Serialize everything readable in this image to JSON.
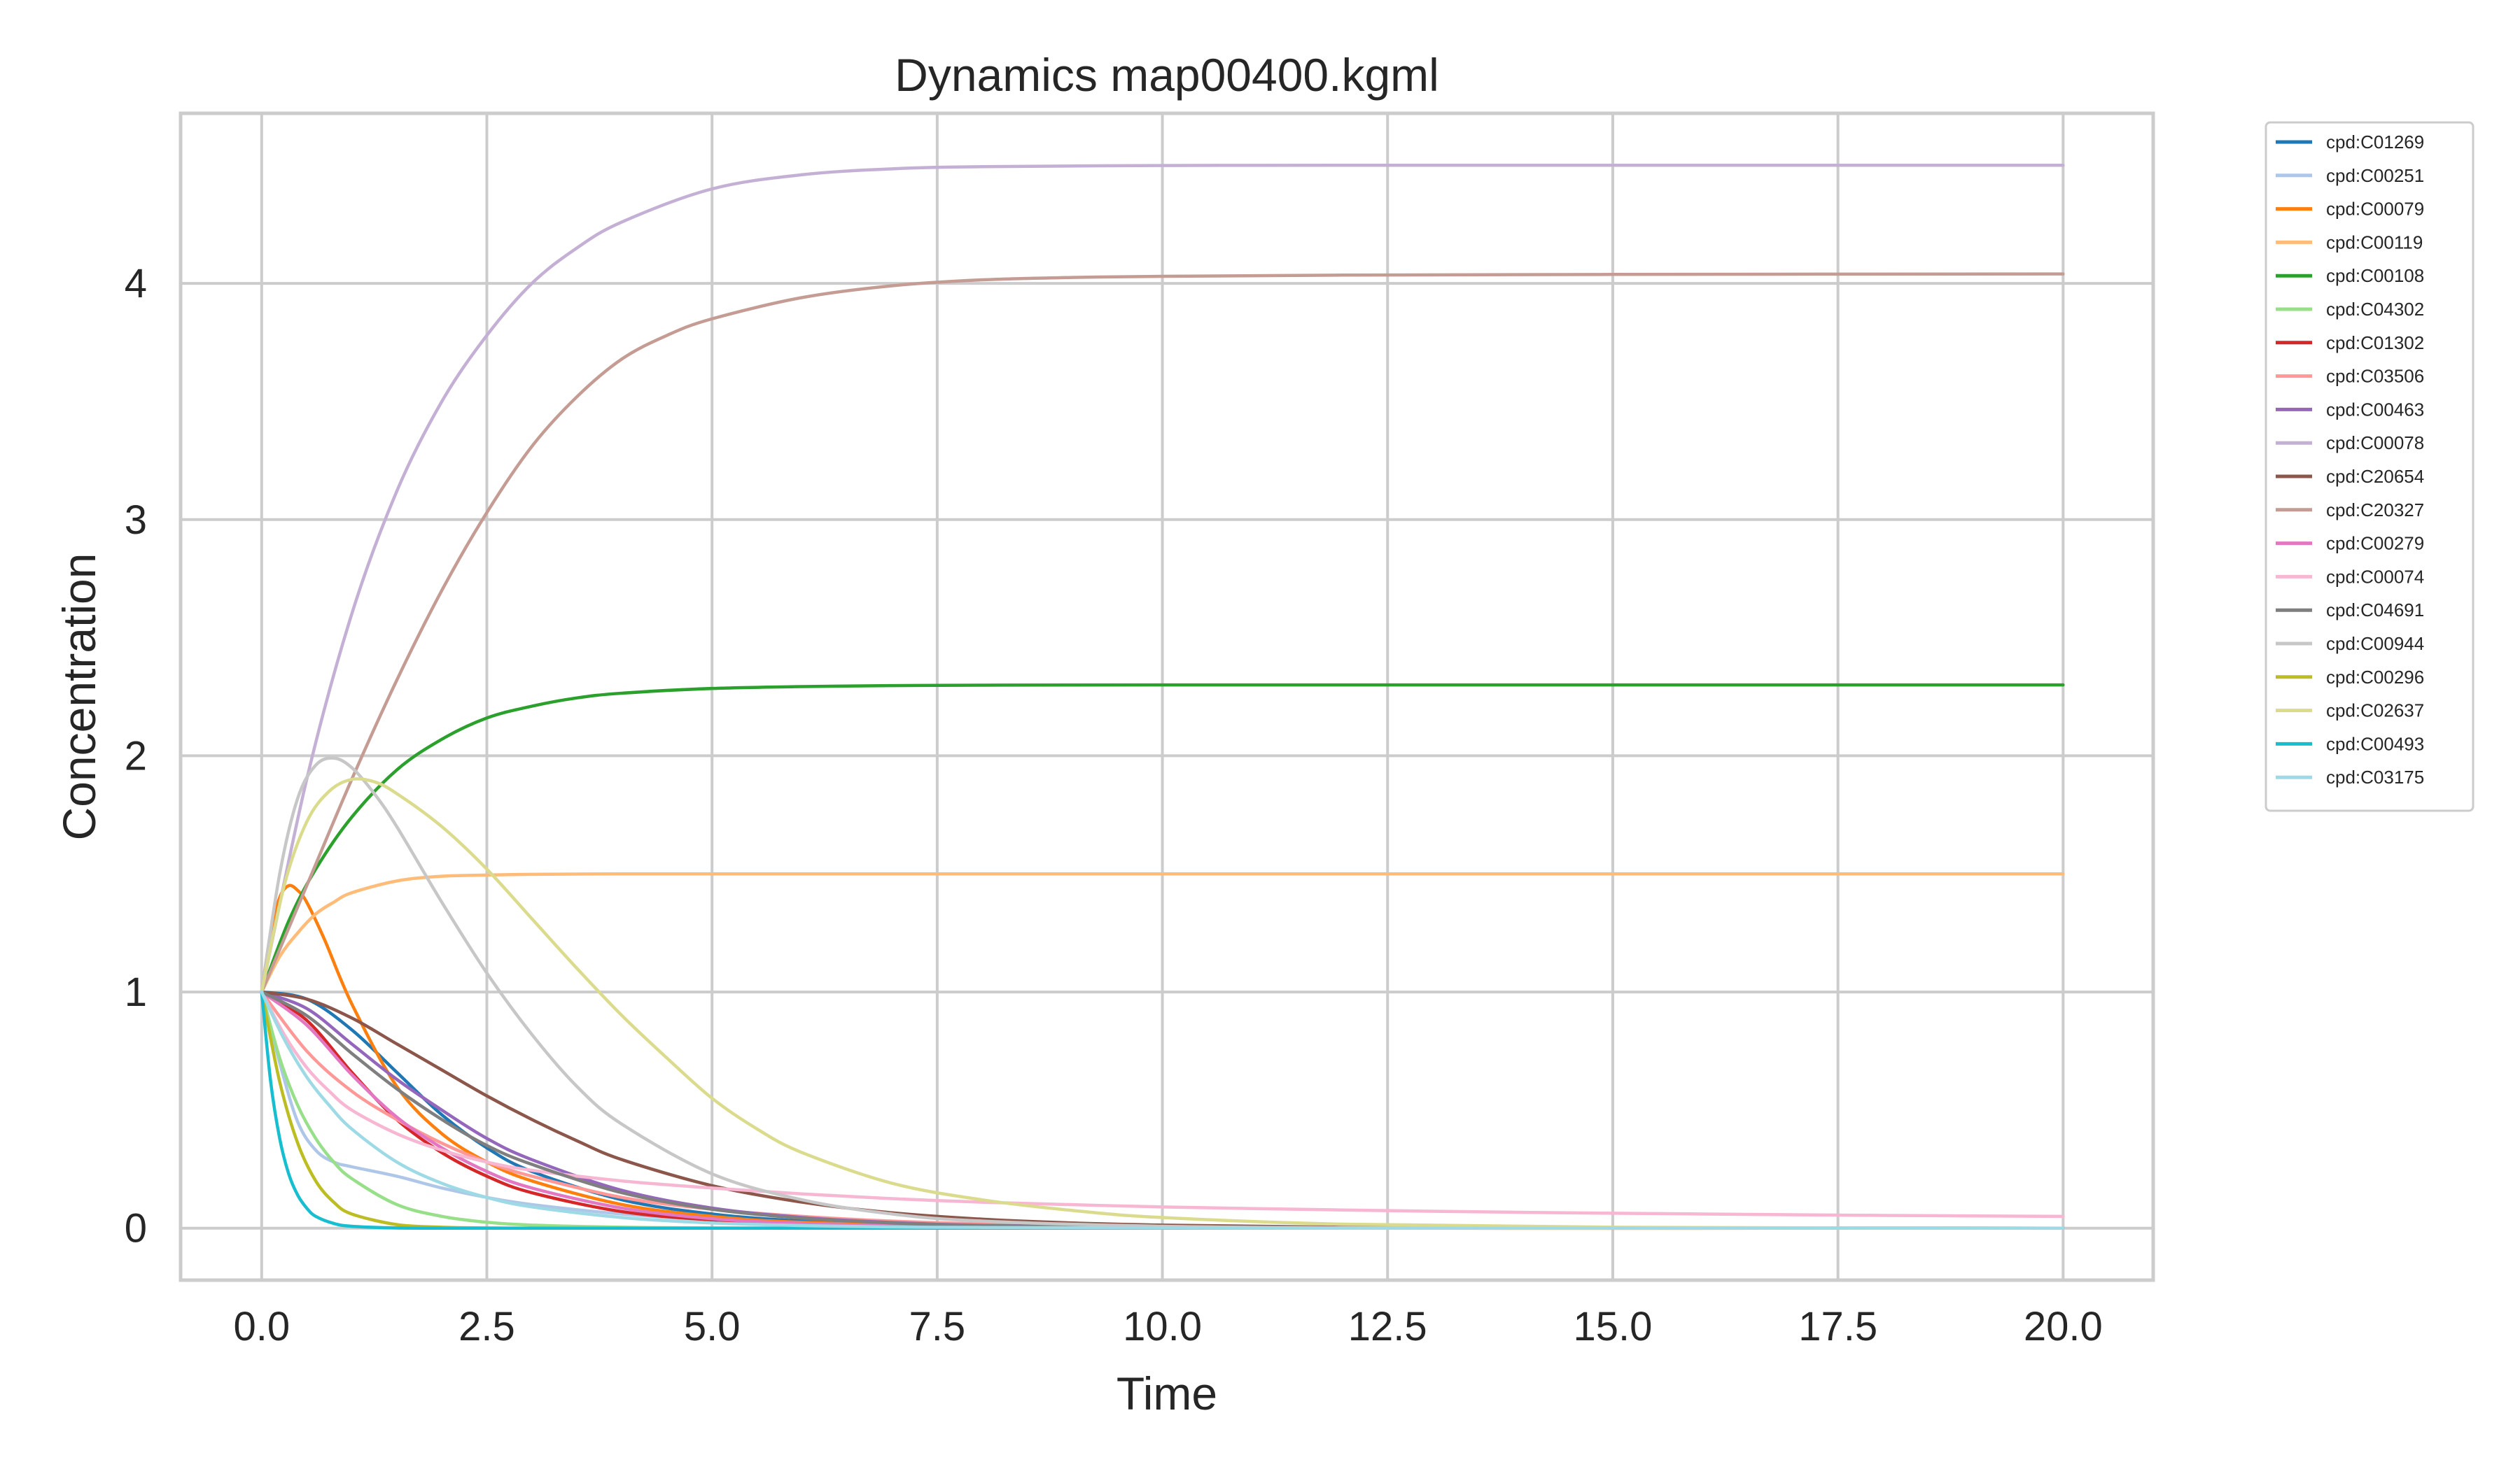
{
  "chart_data": {
    "type": "line",
    "title": "Dynamics map00400.kgml",
    "xlabel": "Time",
    "ylabel": "Concentration",
    "xlim": [
      -0.9,
      21.0
    ],
    "ylim": [
      -0.22,
      4.72
    ],
    "xticks": [
      0,
      2.5,
      5,
      7.5,
      10,
      12.5,
      15,
      17.5,
      20
    ],
    "xtick_labels": [
      "0.0",
      "2.5",
      "5.0",
      "7.5",
      "10.0",
      "12.5",
      "15.0",
      "17.5",
      "20.0"
    ],
    "yticks": [
      0,
      1,
      2,
      3,
      4
    ],
    "ytick_labels": [
      "0",
      "1",
      "2",
      "3",
      "4"
    ],
    "grid": true,
    "legend_position": "outside-right",
    "series": [
      {
        "name": "cpd:C01269",
        "color": "#1f77b4",
        "x": [
          0,
          0.5,
          1,
          1.5,
          2,
          2.5,
          3,
          4,
          5,
          6,
          7,
          8,
          10,
          12,
          15,
          20
        ],
        "y": [
          1.0,
          0.97,
          0.84,
          0.66,
          0.48,
          0.34,
          0.24,
          0.12,
          0.06,
          0.03,
          0.015,
          0.008,
          0.002,
          0.001,
          0.0,
          0.0
        ]
      },
      {
        "name": "cpd:C00251",
        "color": "#aec7e8",
        "x": [
          0,
          0.2,
          0.4,
          0.6,
          0.8,
          1,
          1.5,
          2,
          2.5,
          3,
          4,
          5,
          6,
          8,
          10,
          15,
          20
        ],
        "y": [
          1.0,
          0.7,
          0.45,
          0.33,
          0.28,
          0.26,
          0.22,
          0.17,
          0.13,
          0.1,
          0.06,
          0.035,
          0.02,
          0.007,
          0.002,
          0.0,
          0.0
        ]
      },
      {
        "name": "cpd:C00079",
        "color": "#ff7f0e",
        "x": [
          0,
          0.1,
          0.2,
          0.3,
          0.4,
          0.5,
          0.7,
          1,
          1.5,
          2,
          2.5,
          3,
          4,
          5,
          6,
          8,
          10,
          20
        ],
        "y": [
          1.0,
          1.25,
          1.4,
          1.45,
          1.43,
          1.38,
          1.22,
          0.95,
          0.6,
          0.4,
          0.28,
          0.2,
          0.1,
          0.05,
          0.025,
          0.006,
          0.0,
          0.0
        ]
      },
      {
        "name": "cpd:C00119",
        "color": "#ffbb78",
        "x": [
          0,
          0.2,
          0.4,
          0.6,
          0.8,
          1,
          1.5,
          2,
          2.5,
          3,
          4,
          5,
          7,
          10,
          15,
          20
        ],
        "y": [
          1.0,
          1.15,
          1.25,
          1.33,
          1.38,
          1.42,
          1.47,
          1.49,
          1.495,
          1.498,
          1.5,
          1.5,
          1.5,
          1.5,
          1.5,
          1.5
        ]
      },
      {
        "name": "cpd:C00108",
        "color": "#2ca02c",
        "x": [
          0,
          0.3,
          0.6,
          1,
          1.5,
          2,
          2.5,
          3,
          3.5,
          4,
          5,
          6,
          7,
          8,
          10,
          15,
          20
        ],
        "y": [
          1.0,
          1.3,
          1.52,
          1.74,
          1.94,
          2.07,
          2.16,
          2.21,
          2.245,
          2.265,
          2.285,
          2.293,
          2.297,
          2.299,
          2.3,
          2.3,
          2.3
        ]
      },
      {
        "name": "cpd:C04302",
        "color": "#98df8a",
        "x": [
          0,
          0.2,
          0.4,
          0.6,
          0.8,
          1,
          1.5,
          2,
          2.5,
          3,
          4,
          5,
          7,
          10,
          20
        ],
        "y": [
          1.0,
          0.72,
          0.52,
          0.38,
          0.28,
          0.21,
          0.1,
          0.05,
          0.025,
          0.013,
          0.004,
          0.001,
          0.0,
          0.0,
          0.0
        ]
      },
      {
        "name": "cpd:C01302",
        "color": "#d62728",
        "x": [
          0,
          0.5,
          1,
          1.5,
          2,
          2.5,
          3,
          4,
          5,
          6,
          7,
          8,
          10,
          12,
          20
        ],
        "y": [
          1.0,
          0.88,
          0.66,
          0.46,
          0.32,
          0.22,
          0.15,
          0.07,
          0.035,
          0.017,
          0.008,
          0.004,
          0.001,
          0.0,
          0.0
        ]
      },
      {
        "name": "cpd:C03506",
        "color": "#ff9896",
        "x": [
          0,
          0.5,
          1,
          1.5,
          2,
          2.5,
          3,
          4,
          5,
          6,
          7,
          8,
          10,
          12,
          20
        ],
        "y": [
          1.0,
          0.75,
          0.58,
          0.46,
          0.36,
          0.28,
          0.22,
          0.13,
          0.08,
          0.05,
          0.03,
          0.018,
          0.006,
          0.002,
          0.0
        ]
      },
      {
        "name": "cpd:C00463",
        "color": "#9467bd",
        "x": [
          0,
          0.5,
          1,
          1.5,
          2,
          2.5,
          3,
          4,
          5,
          6,
          7,
          8,
          10,
          12,
          15,
          20
        ],
        "y": [
          1.0,
          0.93,
          0.78,
          0.63,
          0.5,
          0.38,
          0.29,
          0.16,
          0.085,
          0.045,
          0.024,
          0.012,
          0.003,
          0.001,
          0.0,
          0.0
        ]
      },
      {
        "name": "cpd:C00078",
        "color": "#c5b0d5",
        "x": [
          0,
          0.5,
          1,
          1.5,
          2,
          2.5,
          3,
          3.5,
          4,
          5,
          6,
          7,
          8,
          10,
          12,
          15,
          20
        ],
        "y": [
          1.0,
          1.9,
          2.6,
          3.12,
          3.5,
          3.78,
          4.0,
          4.15,
          4.26,
          4.4,
          4.46,
          4.485,
          4.494,
          4.499,
          4.5,
          4.5,
          4.5
        ]
      },
      {
        "name": "cpd:C20654",
        "color": "#8c564b",
        "x": [
          0,
          0.5,
          1,
          1.5,
          2,
          2.5,
          3,
          3.5,
          4,
          5,
          6,
          7,
          8,
          9,
          10,
          12,
          15,
          20
        ],
        "y": [
          1.0,
          0.97,
          0.89,
          0.78,
          0.67,
          0.56,
          0.46,
          0.37,
          0.29,
          0.18,
          0.11,
          0.065,
          0.038,
          0.022,
          0.013,
          0.004,
          0.001,
          0.0
        ]
      },
      {
        "name": "cpd:C20327",
        "color": "#c49c94",
        "x": [
          0,
          0.5,
          1,
          1.5,
          2,
          2.5,
          3,
          3.5,
          4,
          4.5,
          5,
          6,
          7,
          8,
          9,
          10,
          12,
          15,
          20
        ],
        "y": [
          1.0,
          1.45,
          1.9,
          2.32,
          2.7,
          3.03,
          3.31,
          3.52,
          3.68,
          3.78,
          3.85,
          3.94,
          3.99,
          4.015,
          4.025,
          4.03,
          4.035,
          4.038,
          4.04
        ]
      },
      {
        "name": "cpd:C00279",
        "color": "#e377c2",
        "x": [
          0,
          0.5,
          1,
          1.5,
          2,
          2.5,
          3,
          4,
          5,
          6,
          7,
          8,
          10,
          12,
          20
        ],
        "y": [
          1.0,
          0.86,
          0.65,
          0.47,
          0.34,
          0.24,
          0.17,
          0.085,
          0.04,
          0.02,
          0.01,
          0.005,
          0.001,
          0.0,
          0.0
        ]
      },
      {
        "name": "cpd:C00074",
        "color": "#f7b6d2",
        "x": [
          0,
          0.25,
          0.5,
          0.75,
          1,
          1.5,
          2,
          2.5,
          3,
          4,
          5,
          6,
          7,
          8,
          10,
          12,
          14,
          16,
          18,
          20
        ],
        "y": [
          1.0,
          0.82,
          0.68,
          0.58,
          0.5,
          0.4,
          0.33,
          0.28,
          0.245,
          0.2,
          0.17,
          0.145,
          0.125,
          0.11,
          0.09,
          0.077,
          0.067,
          0.06,
          0.054,
          0.05
        ]
      },
      {
        "name": "cpd:C04691",
        "color": "#7f7f7f",
        "x": [
          0,
          0.5,
          1,
          1.5,
          2,
          2.5,
          3,
          4,
          5,
          6,
          7,
          8,
          10,
          12,
          20
        ],
        "y": [
          1.0,
          0.9,
          0.74,
          0.59,
          0.46,
          0.35,
          0.27,
          0.15,
          0.08,
          0.042,
          0.022,
          0.011,
          0.003,
          0.001,
          0.0
        ]
      },
      {
        "name": "cpd:C00944",
        "color": "#c7c7c7",
        "x": [
          0,
          0.2,
          0.4,
          0.6,
          0.8,
          1,
          1.25,
          1.5,
          2,
          2.5,
          3,
          3.5,
          4,
          5,
          6,
          7,
          8,
          10,
          12,
          15,
          20
        ],
        "y": [
          1.0,
          1.5,
          1.82,
          1.96,
          1.99,
          1.95,
          1.84,
          1.7,
          1.38,
          1.08,
          0.82,
          0.6,
          0.44,
          0.23,
          0.12,
          0.06,
          0.03,
          0.008,
          0.002,
          0.0,
          0.0
        ]
      },
      {
        "name": "cpd:C00296",
        "color": "#bcbd22",
        "x": [
          0,
          0.2,
          0.4,
          0.6,
          0.8,
          1,
          1.5,
          2,
          2.5,
          3,
          4,
          5,
          10,
          20
        ],
        "y": [
          1.0,
          0.62,
          0.36,
          0.2,
          0.11,
          0.06,
          0.015,
          0.004,
          0.001,
          0.0,
          0.0,
          0.0,
          0.0,
          0.0
        ]
      },
      {
        "name": "cpd:C02637",
        "color": "#dbdb8d",
        "x": [
          0,
          0.25,
          0.5,
          0.75,
          1,
          1.25,
          1.5,
          2,
          2.5,
          3,
          3.5,
          4,
          4.5,
          5,
          5.5,
          6,
          7,
          8,
          9,
          10,
          12,
          15,
          20
        ],
        "y": [
          1.0,
          1.45,
          1.72,
          1.85,
          1.9,
          1.89,
          1.84,
          1.7,
          1.52,
          1.31,
          1.1,
          0.9,
          0.72,
          0.55,
          0.42,
          0.32,
          0.19,
          0.12,
          0.075,
          0.045,
          0.017,
          0.004,
          0.0
        ]
      },
      {
        "name": "cpd:C00493",
        "color": "#17becf",
        "x": [
          0,
          0.1,
          0.2,
          0.3,
          0.4,
          0.5,
          0.6,
          0.8,
          1,
          1.5,
          2,
          3,
          5,
          10,
          20
        ],
        "y": [
          1.0,
          0.62,
          0.38,
          0.23,
          0.14,
          0.085,
          0.05,
          0.02,
          0.008,
          0.001,
          0.0,
          0.0,
          0.0,
          0.0,
          0.0
        ]
      },
      {
        "name": "cpd:C03175",
        "color": "#9edae5",
        "x": [
          0,
          0.25,
          0.5,
          0.75,
          1,
          1.5,
          2,
          2.5,
          3,
          4,
          5,
          6,
          7,
          8,
          10,
          12,
          20
        ],
        "y": [
          1.0,
          0.8,
          0.64,
          0.52,
          0.42,
          0.28,
          0.19,
          0.13,
          0.09,
          0.045,
          0.022,
          0.011,
          0.005,
          0.003,
          0.001,
          0.0,
          0.0
        ]
      }
    ]
  }
}
